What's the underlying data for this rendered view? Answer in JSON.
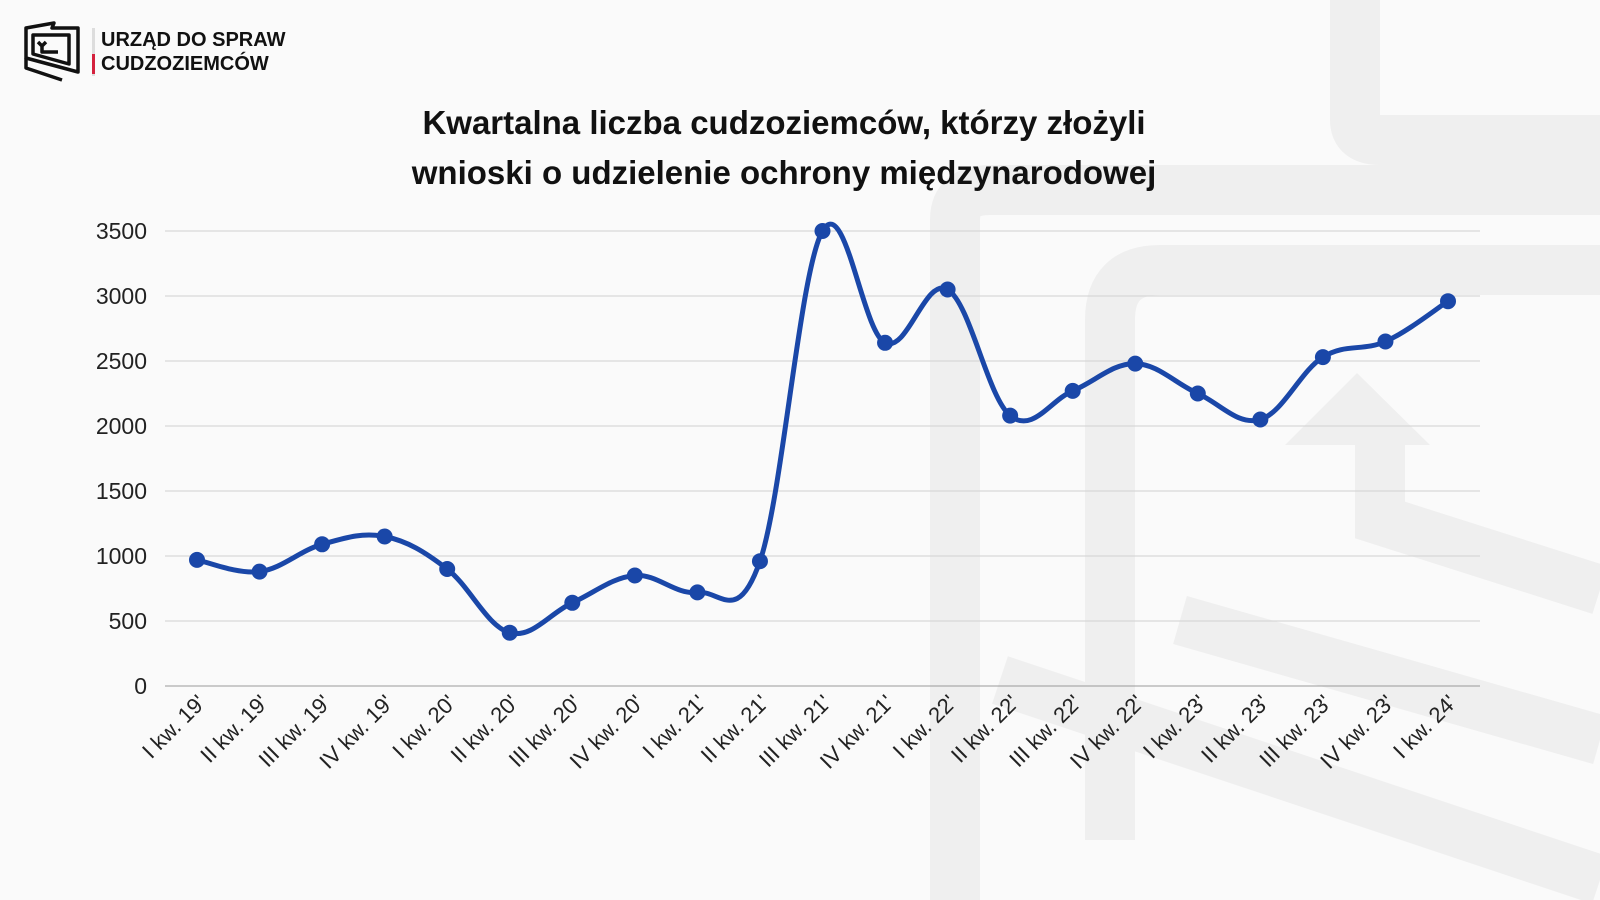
{
  "logo": {
    "line1": "URZĄD DO SPRAW",
    "line2": "CUDZOZIEMCÓW"
  },
  "chart_data": {
    "type": "line",
    "title_line1": "Kwartalna liczba cudzoziemców, którzy złożyli",
    "title_line2": "wnioski o udzielenie ochrony międzynarodowej",
    "xlabel": "",
    "ylabel": "",
    "ylim": [
      0,
      3500
    ],
    "yticks": [
      0,
      500,
      1000,
      1500,
      2000,
      2500,
      3000,
      3500
    ],
    "grid": true,
    "smooth": true,
    "color": "#1a47a8",
    "categories": [
      "I kw. 19'",
      "II kw. 19'",
      "III kw. 19'",
      "IV kw. 19'",
      "I kw. 20'",
      "II kw. 20'",
      "III kw. 20'",
      "IV kw. 20'",
      "I kw. 21'",
      "II kw. 21'",
      "III kw. 21'",
      "IV kw. 21'",
      "I kw. 22'",
      "II kw. 22'",
      "III kw. 22'",
      "IV kw. 22'",
      "I kw. 23'",
      "II kw. 23'",
      "III kw. 23'",
      "IV kw. 23'",
      "I kw. 24'"
    ],
    "values": [
      970,
      880,
      1090,
      1150,
      900,
      410,
      640,
      850,
      720,
      960,
      3500,
      2640,
      3050,
      2080,
      2270,
      2480,
      2250,
      2050,
      2530,
      2650,
      2960
    ]
  }
}
